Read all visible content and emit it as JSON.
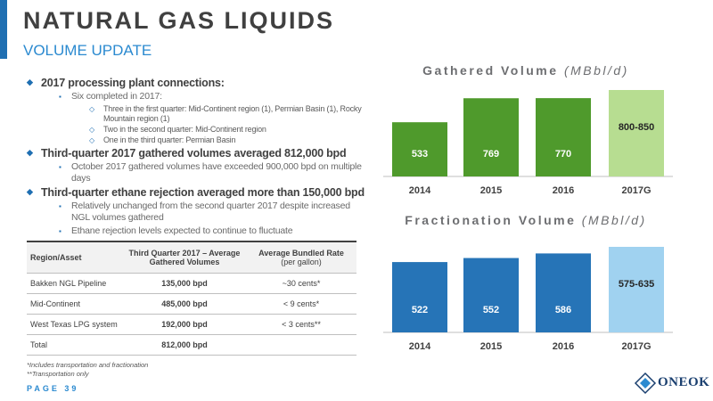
{
  "header": {
    "title": "NATURAL GAS LIQUIDS",
    "subtitle": "VOLUME UPDATE"
  },
  "bullets": [
    {
      "text": "2017 processing plant connections:",
      "children": [
        {
          "text": "Six completed in 2017:",
          "children": [
            "Three in the first quarter: Mid-Continent region (1), Permian Basin (1), Rocky Mountain region (1)",
            "Two in the second quarter: Mid-Continent region",
            "One in the third quarter: Permian Basin"
          ]
        }
      ]
    },
    {
      "text": "Third-quarter 2017 gathered volumes averaged 812,000 bpd",
      "children": [
        {
          "text": "October 2017 gathered volumes have exceeded 900,000 bpd on multiple days"
        }
      ]
    },
    {
      "text": "Third-quarter ethane rejection averaged more than 150,000 bpd",
      "children": [
        {
          "text": "Relatively unchanged from the second quarter 2017 despite increased NGL volumes gathered"
        },
        {
          "text": "Ethane rejection levels expected to continue to fluctuate"
        }
      ]
    }
  ],
  "table": {
    "headers": [
      "Region/Asset",
      "Third Quarter 2017 – Average Gathered Volumes",
      "Average Bundled Rate"
    ],
    "header_unit": "(per gallon)",
    "rows": [
      [
        "Bakken NGL Pipeline",
        "135,000 bpd",
        "~30 cents*"
      ],
      [
        "Mid-Continent",
        "485,000 bpd",
        "< 9 cents*"
      ],
      [
        "West Texas LPG system",
        "192,000 bpd",
        "< 3 cents**"
      ],
      [
        "Total",
        "812,000 bpd"
      ]
    ]
  },
  "footnotes": [
    "*Includes transportation and fractionation",
    "**Transportation only"
  ],
  "footer": {
    "page": "PAGE 39",
    "logo": "ONEOK"
  },
  "chart_data": [
    {
      "type": "bar",
      "title": "Gathered Volume",
      "unit": "(MBbl/d)",
      "categories": [
        "2014",
        "2015",
        "2016",
        "2017G"
      ],
      "values": [
        533,
        769,
        770,
        850
      ],
      "value_labels": [
        null,
        null,
        null,
        "800-850"
      ],
      "colors": [
        "#4f9a2c",
        "#4f9a2c",
        "#4f9a2c",
        "#b7dd91"
      ]
    },
    {
      "type": "bar",
      "title": "Fractionation Volume",
      "unit": "(MBbl/d)",
      "categories": [
        "2014",
        "2015",
        "2016",
        "2017G"
      ],
      "values": [
        522,
        552,
        586,
        635
      ],
      "value_labels": [
        null,
        null,
        null,
        "575-635"
      ],
      "colors": [
        "#2674b7",
        "#2674b7",
        "#2674b7",
        "#a0d2f0"
      ]
    }
  ]
}
